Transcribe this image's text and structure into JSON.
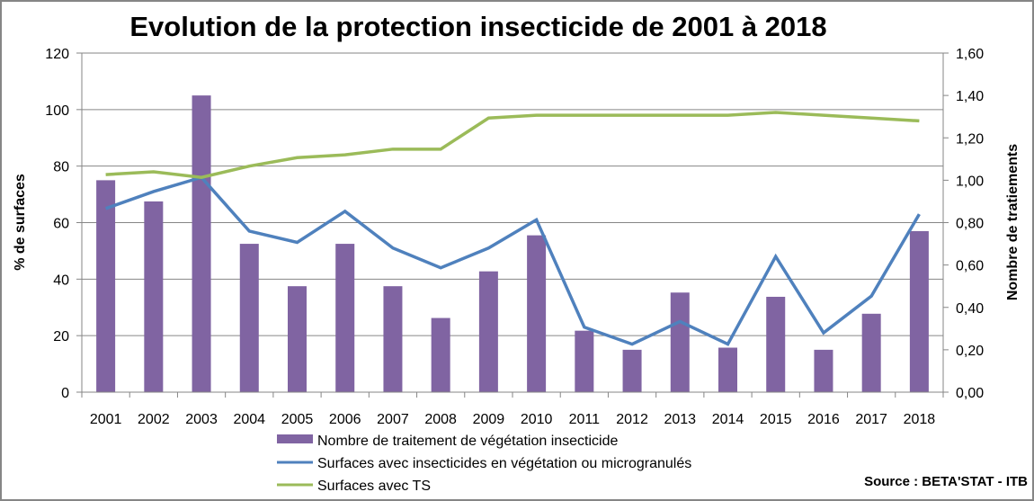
{
  "chart_data": {
    "type": "bar",
    "title": "Evolution de la protection insecticide de 2001 à 2018",
    "xlabel": "",
    "ylabel": "% de surfaces",
    "y2label": "Nombre de tratiements",
    "ylim": [
      0,
      120
    ],
    "y2lim": [
      0,
      1.6
    ],
    "yticks": [
      "0",
      "20",
      "40",
      "60",
      "80",
      "100",
      "120"
    ],
    "y2ticks": [
      "0,00",
      "0,20",
      "0,40",
      "0,60",
      "0,80",
      "1,00",
      "1,20",
      "1,40",
      "1,60"
    ],
    "grid": true,
    "legend_position": "bottom",
    "categories": [
      "2001",
      "2002",
      "2003",
      "2004",
      "2005",
      "2006",
      "2007",
      "2008",
      "2009",
      "2010",
      "2011",
      "2012",
      "2013",
      "2014",
      "2015",
      "2016",
      "2017",
      "2018"
    ],
    "series": [
      {
        "name": "Nombre de traitement de végétation insecticide",
        "type": "bar",
        "axis": "right",
        "color": "#8064A2",
        "values": [
          1.0,
          0.9,
          1.4,
          0.7,
          0.5,
          0.7,
          0.5,
          0.35,
          0.57,
          0.74,
          0.29,
          0.2,
          0.47,
          0.21,
          0.45,
          0.2,
          0.37,
          0.76
        ]
      },
      {
        "name": "Surfaces avec insecticides en végétation ou microgranulés",
        "type": "line",
        "axis": "left",
        "color": "#4F81BD",
        "values": [
          65,
          71,
          76,
          57,
          53,
          64,
          51,
          44,
          51,
          61,
          23,
          17,
          25,
          17,
          48,
          21,
          34,
          63
        ]
      },
      {
        "name": "Surfaces avec TS",
        "type": "line",
        "axis": "left",
        "color": "#9BBB59",
        "values": [
          77,
          78,
          76,
          80,
          83,
          84,
          86,
          86,
          97,
          98,
          98,
          98,
          98,
          98,
          99,
          98,
          97,
          96
        ]
      }
    ],
    "annotations": [
      "Source : BETA'STAT - ITB"
    ]
  }
}
